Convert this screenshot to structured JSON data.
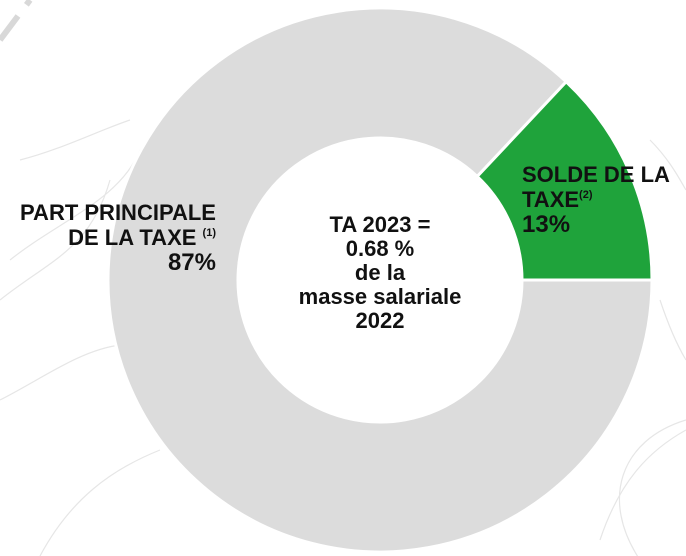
{
  "chart_data": {
    "type": "donut",
    "categories": [
      "PART PRINCIPALE DE LA TAXE",
      "SOLDE DE LA TAXE"
    ],
    "notes": [
      "(1)",
      "(2)"
    ],
    "values": [
      87,
      13
    ],
    "value_labels": [
      "87%",
      "13%"
    ],
    "colors": [
      "#dcdcdc",
      "#1fa33b"
    ],
    "center_text": [
      "TA 2023 =",
      "0.68 %",
      "de la",
      "masse salariale",
      "2022"
    ]
  }
}
